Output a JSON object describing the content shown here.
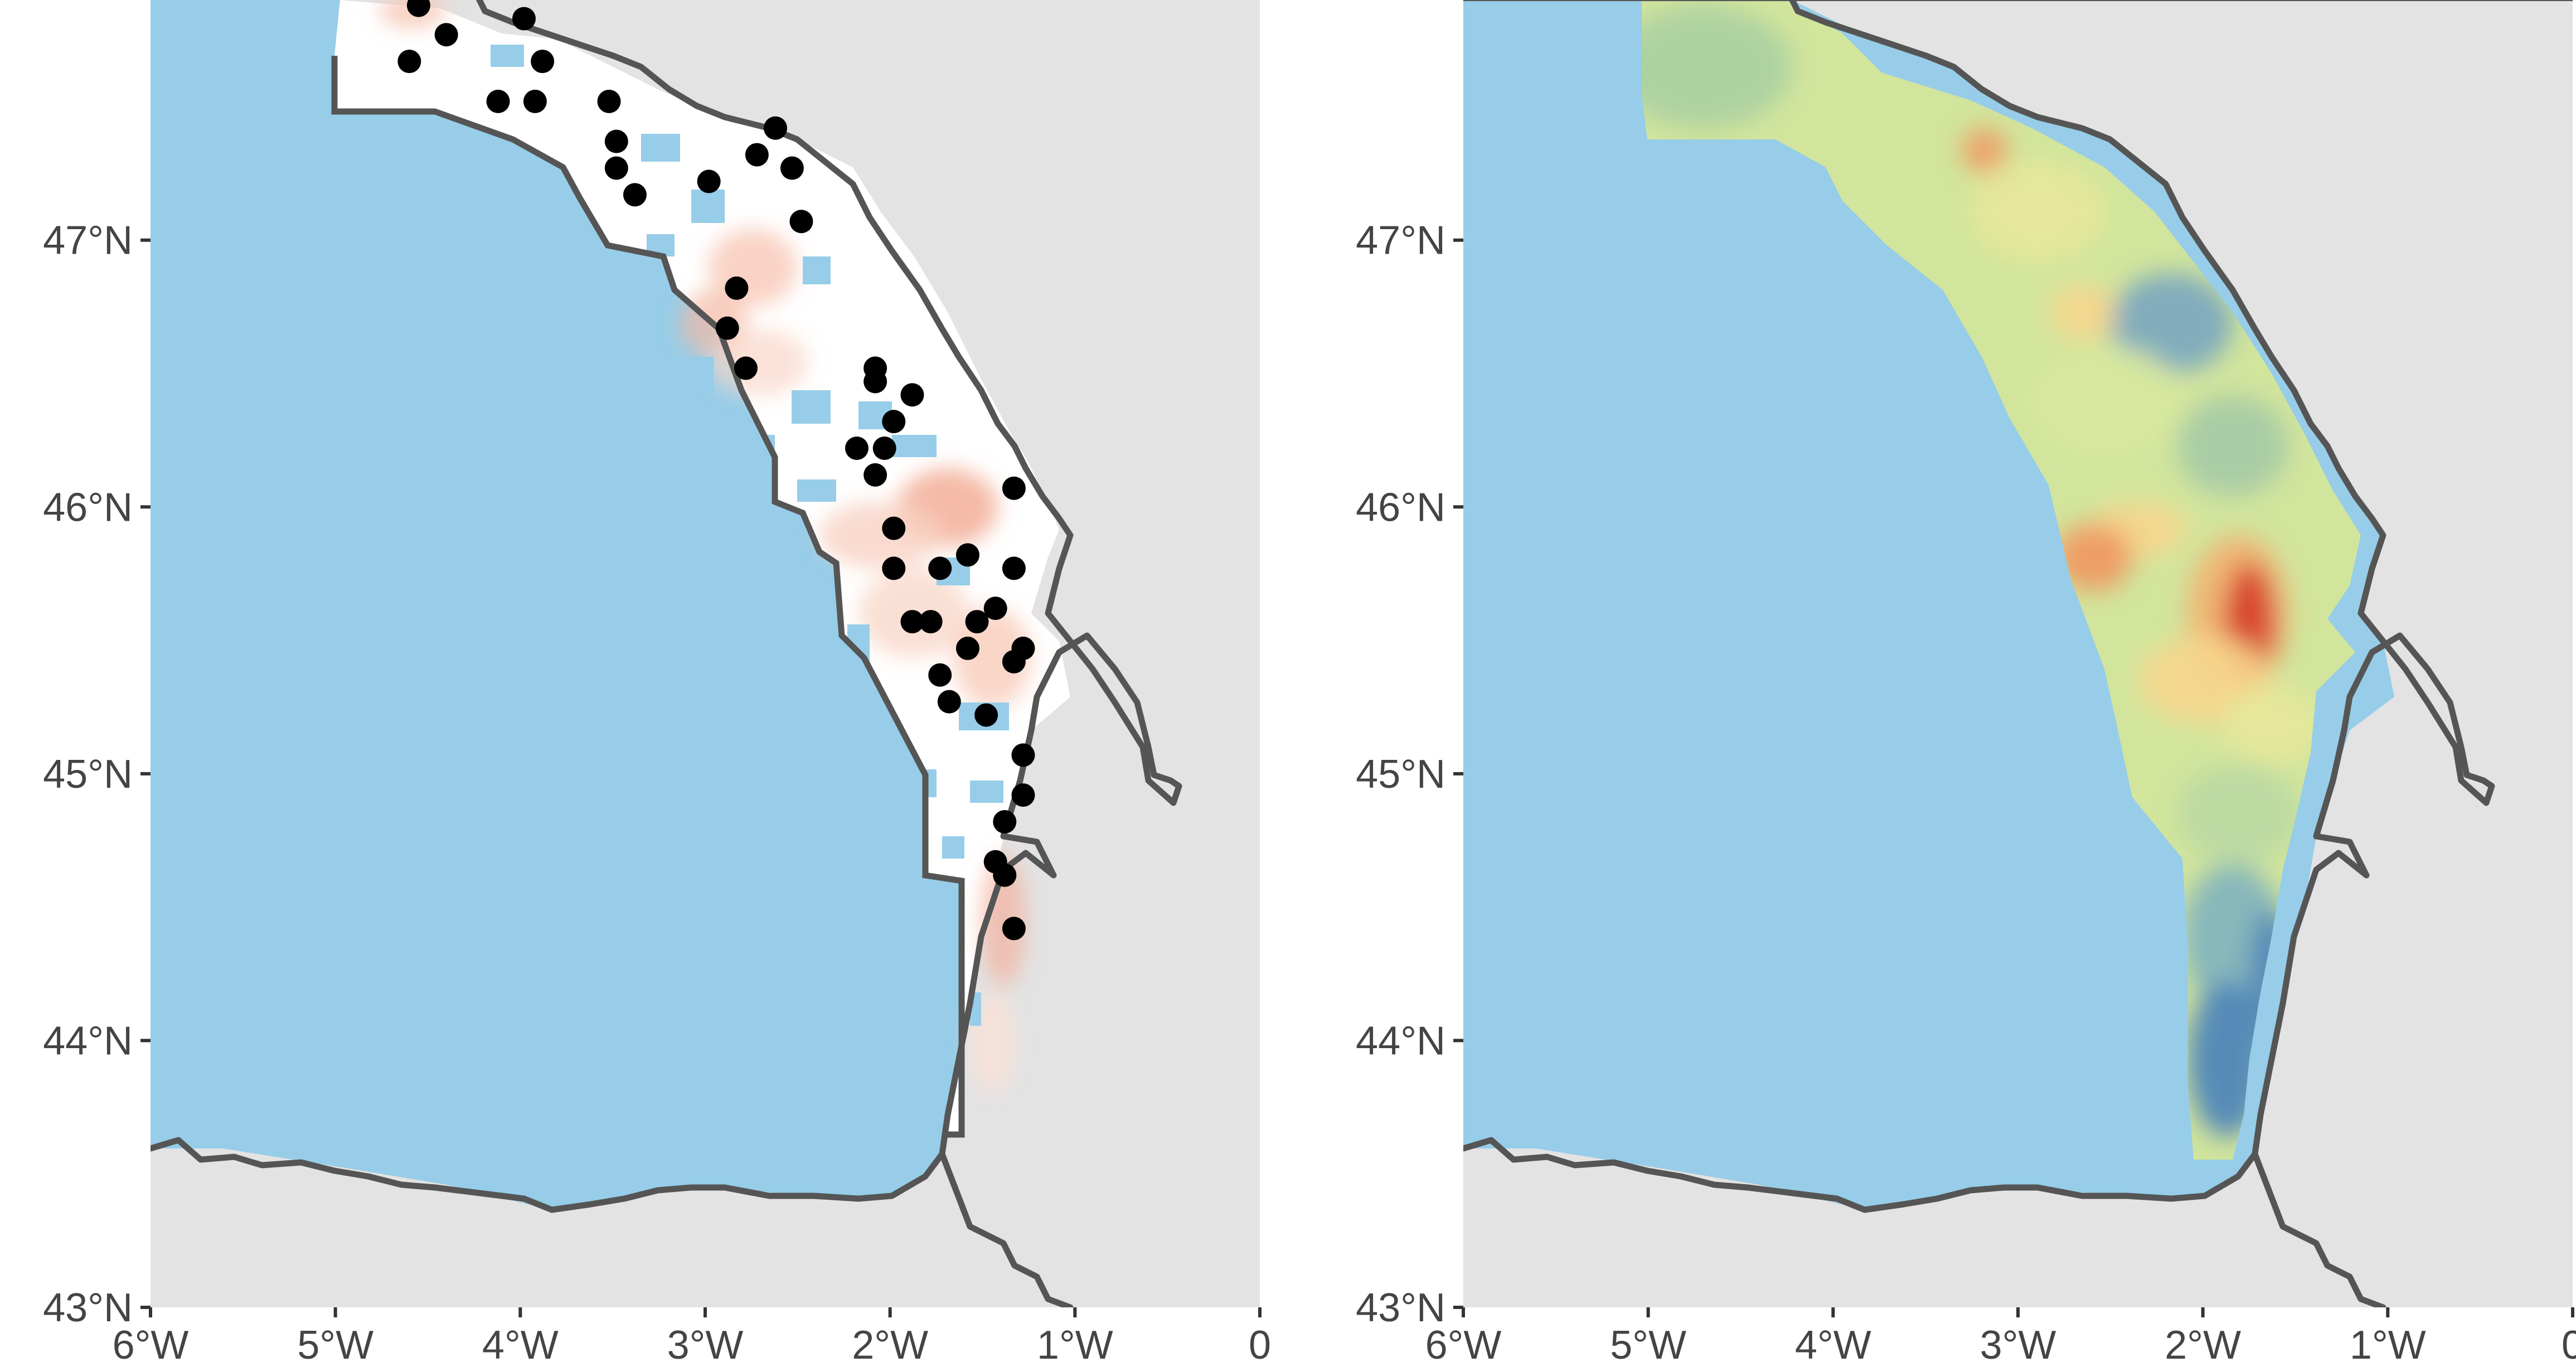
{
  "colors": {
    "land": "#e3e3e3",
    "sea": "#97cde8",
    "coastline": "#555555",
    "stations": "#000000",
    "left_scale": [
      "#ffffff",
      "#fbe1d6",
      "#f4b19c",
      "#e8806b"
    ],
    "right_scale": [
      "#4f86b8",
      "#9fc7a8",
      "#d8e89e",
      "#f6d58c",
      "#ef9a62",
      "#d7402c"
    ]
  },
  "panels": [
    {
      "id": "left",
      "content": "coarse grid cells (white to light red) inside the survey boundary, with black sampling stations",
      "x_axis": {
        "range": [
          -6,
          0
        ],
        "ticks": [
          {
            "value": -6,
            "label": "6°W"
          },
          {
            "value": -5,
            "label": "5°W"
          },
          {
            "value": -4,
            "label": "4°W"
          },
          {
            "value": -3,
            "label": "3°W"
          },
          {
            "value": -2,
            "label": "2°W"
          },
          {
            "value": -1,
            "label": "1°W"
          },
          {
            "value": 0,
            "label": "0"
          }
        ]
      },
      "y_axis": {
        "range": [
          43,
          47.9
        ],
        "ticks": [
          {
            "value": 43,
            "label": "43°N"
          },
          {
            "value": 44,
            "label": "44°N"
          },
          {
            "value": 45,
            "label": "45°N"
          },
          {
            "value": 46,
            "label": "46°N"
          },
          {
            "value": 47,
            "label": "47°N"
          }
        ]
      },
      "stations": [
        [
          -4.55,
          47.88
        ],
        [
          -4.6,
          47.67
        ],
        [
          -4.4,
          47.77
        ],
        [
          -3.98,
          47.83
        ],
        [
          -3.88,
          47.67
        ],
        [
          -4.12,
          47.52
        ],
        [
          -3.92,
          47.52
        ],
        [
          -3.52,
          47.52
        ],
        [
          -3.48,
          47.37
        ],
        [
          -3.48,
          47.27
        ],
        [
          -3.38,
          47.17
        ],
        [
          -2.98,
          47.22
        ],
        [
          -2.62,
          47.42
        ],
        [
          -2.72,
          47.32
        ],
        [
          -2.53,
          47.27
        ],
        [
          -2.48,
          47.07
        ],
        [
          -2.83,
          46.82
        ],
        [
          -2.88,
          46.67
        ],
        [
          -2.78,
          46.52
        ],
        [
          -2.08,
          46.52
        ],
        [
          -2.08,
          46.47
        ],
        [
          -1.88,
          46.42
        ],
        [
          -1.98,
          46.32
        ],
        [
          -2.18,
          46.22
        ],
        [
          -2.03,
          46.22
        ],
        [
          -2.08,
          46.12
        ],
        [
          -1.33,
          46.07
        ],
        [
          -1.98,
          45.92
        ],
        [
          -1.58,
          45.82
        ],
        [
          -1.98,
          45.77
        ],
        [
          -1.73,
          45.77
        ],
        [
          -1.33,
          45.77
        ],
        [
          -1.43,
          45.62
        ],
        [
          -1.53,
          45.57
        ],
        [
          -1.78,
          45.57
        ],
        [
          -1.88,
          45.57
        ],
        [
          -1.58,
          45.47
        ],
        [
          -1.28,
          45.47
        ],
        [
          -1.33,
          45.42
        ],
        [
          -1.73,
          45.37
        ],
        [
          -1.68,
          45.27
        ],
        [
          -1.48,
          45.22
        ],
        [
          -1.28,
          45.07
        ],
        [
          -1.28,
          44.92
        ],
        [
          -1.38,
          44.82
        ],
        [
          -1.43,
          44.67
        ],
        [
          -1.38,
          44.62
        ],
        [
          -1.33,
          44.42
        ]
      ]
    },
    {
      "id": "right",
      "content": "continuous interpolated surface (blue–green–yellow–red) over the shelf",
      "x_axis": {
        "range": [
          -6,
          0
        ],
        "ticks": [
          {
            "value": -6,
            "label": "6°W"
          },
          {
            "value": -5,
            "label": "5°W"
          },
          {
            "value": -4,
            "label": "4°W"
          },
          {
            "value": -3,
            "label": "3°W"
          },
          {
            "value": -2,
            "label": "2°W"
          },
          {
            "value": -1,
            "label": "1°W"
          },
          {
            "value": 0,
            "label": "0"
          }
        ]
      },
      "y_axis": {
        "range": [
          43,
          47.9
        ],
        "ticks": [
          {
            "value": 43,
            "label": "43°N"
          },
          {
            "value": 44,
            "label": "44°N"
          },
          {
            "value": 45,
            "label": "45°N"
          },
          {
            "value": 46,
            "label": "46°N"
          },
          {
            "value": 47,
            "label": "47°N"
          }
        ]
      }
    }
  ]
}
